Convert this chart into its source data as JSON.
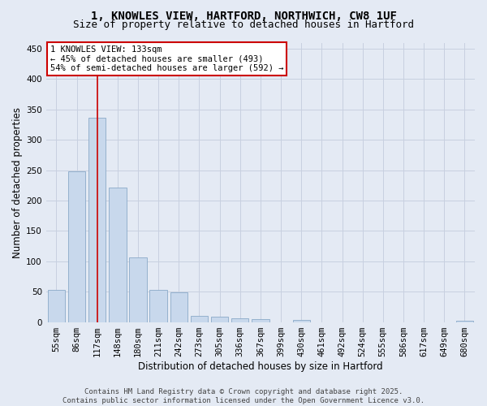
{
  "title_line1": "1, KNOWLES VIEW, HARTFORD, NORTHWICH, CW8 1UF",
  "title_line2": "Size of property relative to detached houses in Hartford",
  "xlabel": "Distribution of detached houses by size in Hartford",
  "ylabel": "Number of detached properties",
  "categories": [
    "55sqm",
    "86sqm",
    "117sqm",
    "148sqm",
    "180sqm",
    "211sqm",
    "242sqm",
    "273sqm",
    "305sqm",
    "336sqm",
    "367sqm",
    "399sqm",
    "430sqm",
    "461sqm",
    "492sqm",
    "524sqm",
    "555sqm",
    "586sqm",
    "617sqm",
    "649sqm",
    "680sqm"
  ],
  "values": [
    53,
    248,
    337,
    222,
    106,
    53,
    49,
    10,
    9,
    6,
    5,
    0,
    3,
    0,
    0,
    0,
    0,
    0,
    0,
    0,
    2
  ],
  "bar_color": "#c8d8ec",
  "bar_edge_color": "#8aaac8",
  "grid_color": "#c8d0e0",
  "bg_color": "#e4eaf4",
  "annotation_text": "1 KNOWLES VIEW: 133sqm\n← 45% of detached houses are smaller (493)\n54% of semi-detached houses are larger (592) →",
  "annotation_box_color": "#ffffff",
  "annotation_box_edge_color": "#cc0000",
  "vline_x": 2.0,
  "vline_color": "#cc0000",
  "ylim": [
    0,
    460
  ],
  "yticks": [
    0,
    50,
    100,
    150,
    200,
    250,
    300,
    350,
    400,
    450
  ],
  "footer_text": "Contains HM Land Registry data © Crown copyright and database right 2025.\nContains public sector information licensed under the Open Government Licence v3.0.",
  "title_fontsize": 10,
  "subtitle_fontsize": 9,
  "axis_label_fontsize": 8.5,
  "tick_fontsize": 7.5,
  "annotation_fontsize": 7.5,
  "footer_fontsize": 6.5
}
